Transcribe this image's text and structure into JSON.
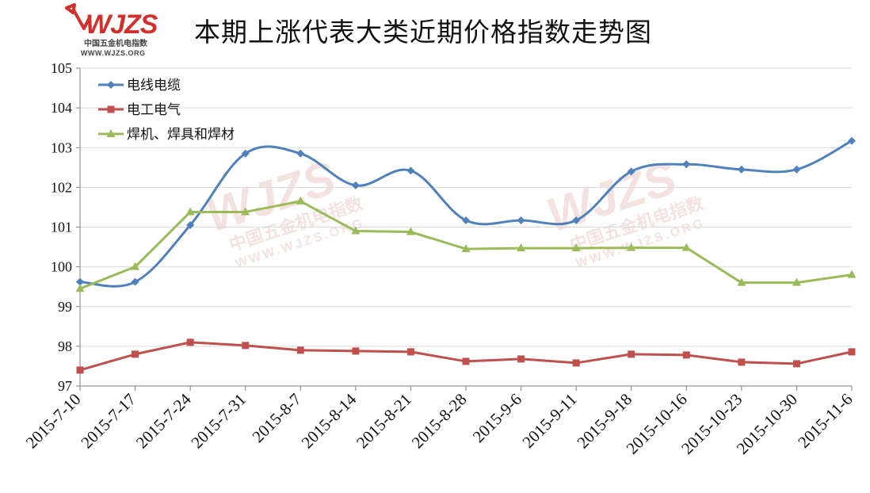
{
  "title": "本期上涨代表大类近期价格指数走势图",
  "logo": {
    "mark": "WJZS",
    "subtitle": "中国五金机电指数",
    "url": "WWW.WJZS.ORG"
  },
  "colors": {
    "series": [
      "#4F81BD",
      "#C0504D",
      "#9BBB59"
    ],
    "grid": "#d9d9d9",
    "axis": "#7f7f7f",
    "watermark": "#c0504d",
    "logo_red": "#d0312d"
  },
  "chart_data": {
    "type": "line",
    "title": "本期上涨代表大类近期价格指数走势图",
    "xlabel": "",
    "ylabel": "",
    "ylim": [
      97,
      105
    ],
    "yticks": [
      97,
      98,
      99,
      100,
      101,
      102,
      103,
      104,
      105
    ],
    "grid": true,
    "legend": "top-left",
    "categories": [
      "2015-7-10",
      "2015-7-17",
      "2015-7-24",
      "2015-7-31",
      "2015-8-7",
      "2015-8-14",
      "2015-8-21",
      "2015-8-28",
      "2015-9-6",
      "2015-9-11",
      "2015-9-18",
      "2015-10-16",
      "2015-10-23",
      "2015-10-30",
      "2015-11-6"
    ],
    "series": [
      {
        "name": "电线电缆",
        "marker": "diamond",
        "smooth": true,
        "values": [
          99.62,
          99.62,
          101.05,
          102.85,
          102.85,
          102.05,
          102.42,
          101.17,
          101.17,
          101.17,
          102.4,
          102.58,
          102.45,
          102.45,
          103.17
        ]
      },
      {
        "name": "电工电气",
        "marker": "square",
        "smooth": false,
        "values": [
          97.4,
          97.8,
          98.1,
          98.02,
          97.9,
          97.88,
          97.86,
          97.62,
          97.68,
          97.58,
          97.8,
          97.78,
          97.6,
          97.56,
          97.86
        ]
      },
      {
        "name": "焊机、焊具和焊材",
        "marker": "triangle",
        "smooth": false,
        "values": [
          99.45,
          100.0,
          101.38,
          101.38,
          101.65,
          100.9,
          100.88,
          100.45,
          100.47,
          100.47,
          100.48,
          100.48,
          99.6,
          99.6,
          99.8
        ]
      }
    ]
  }
}
